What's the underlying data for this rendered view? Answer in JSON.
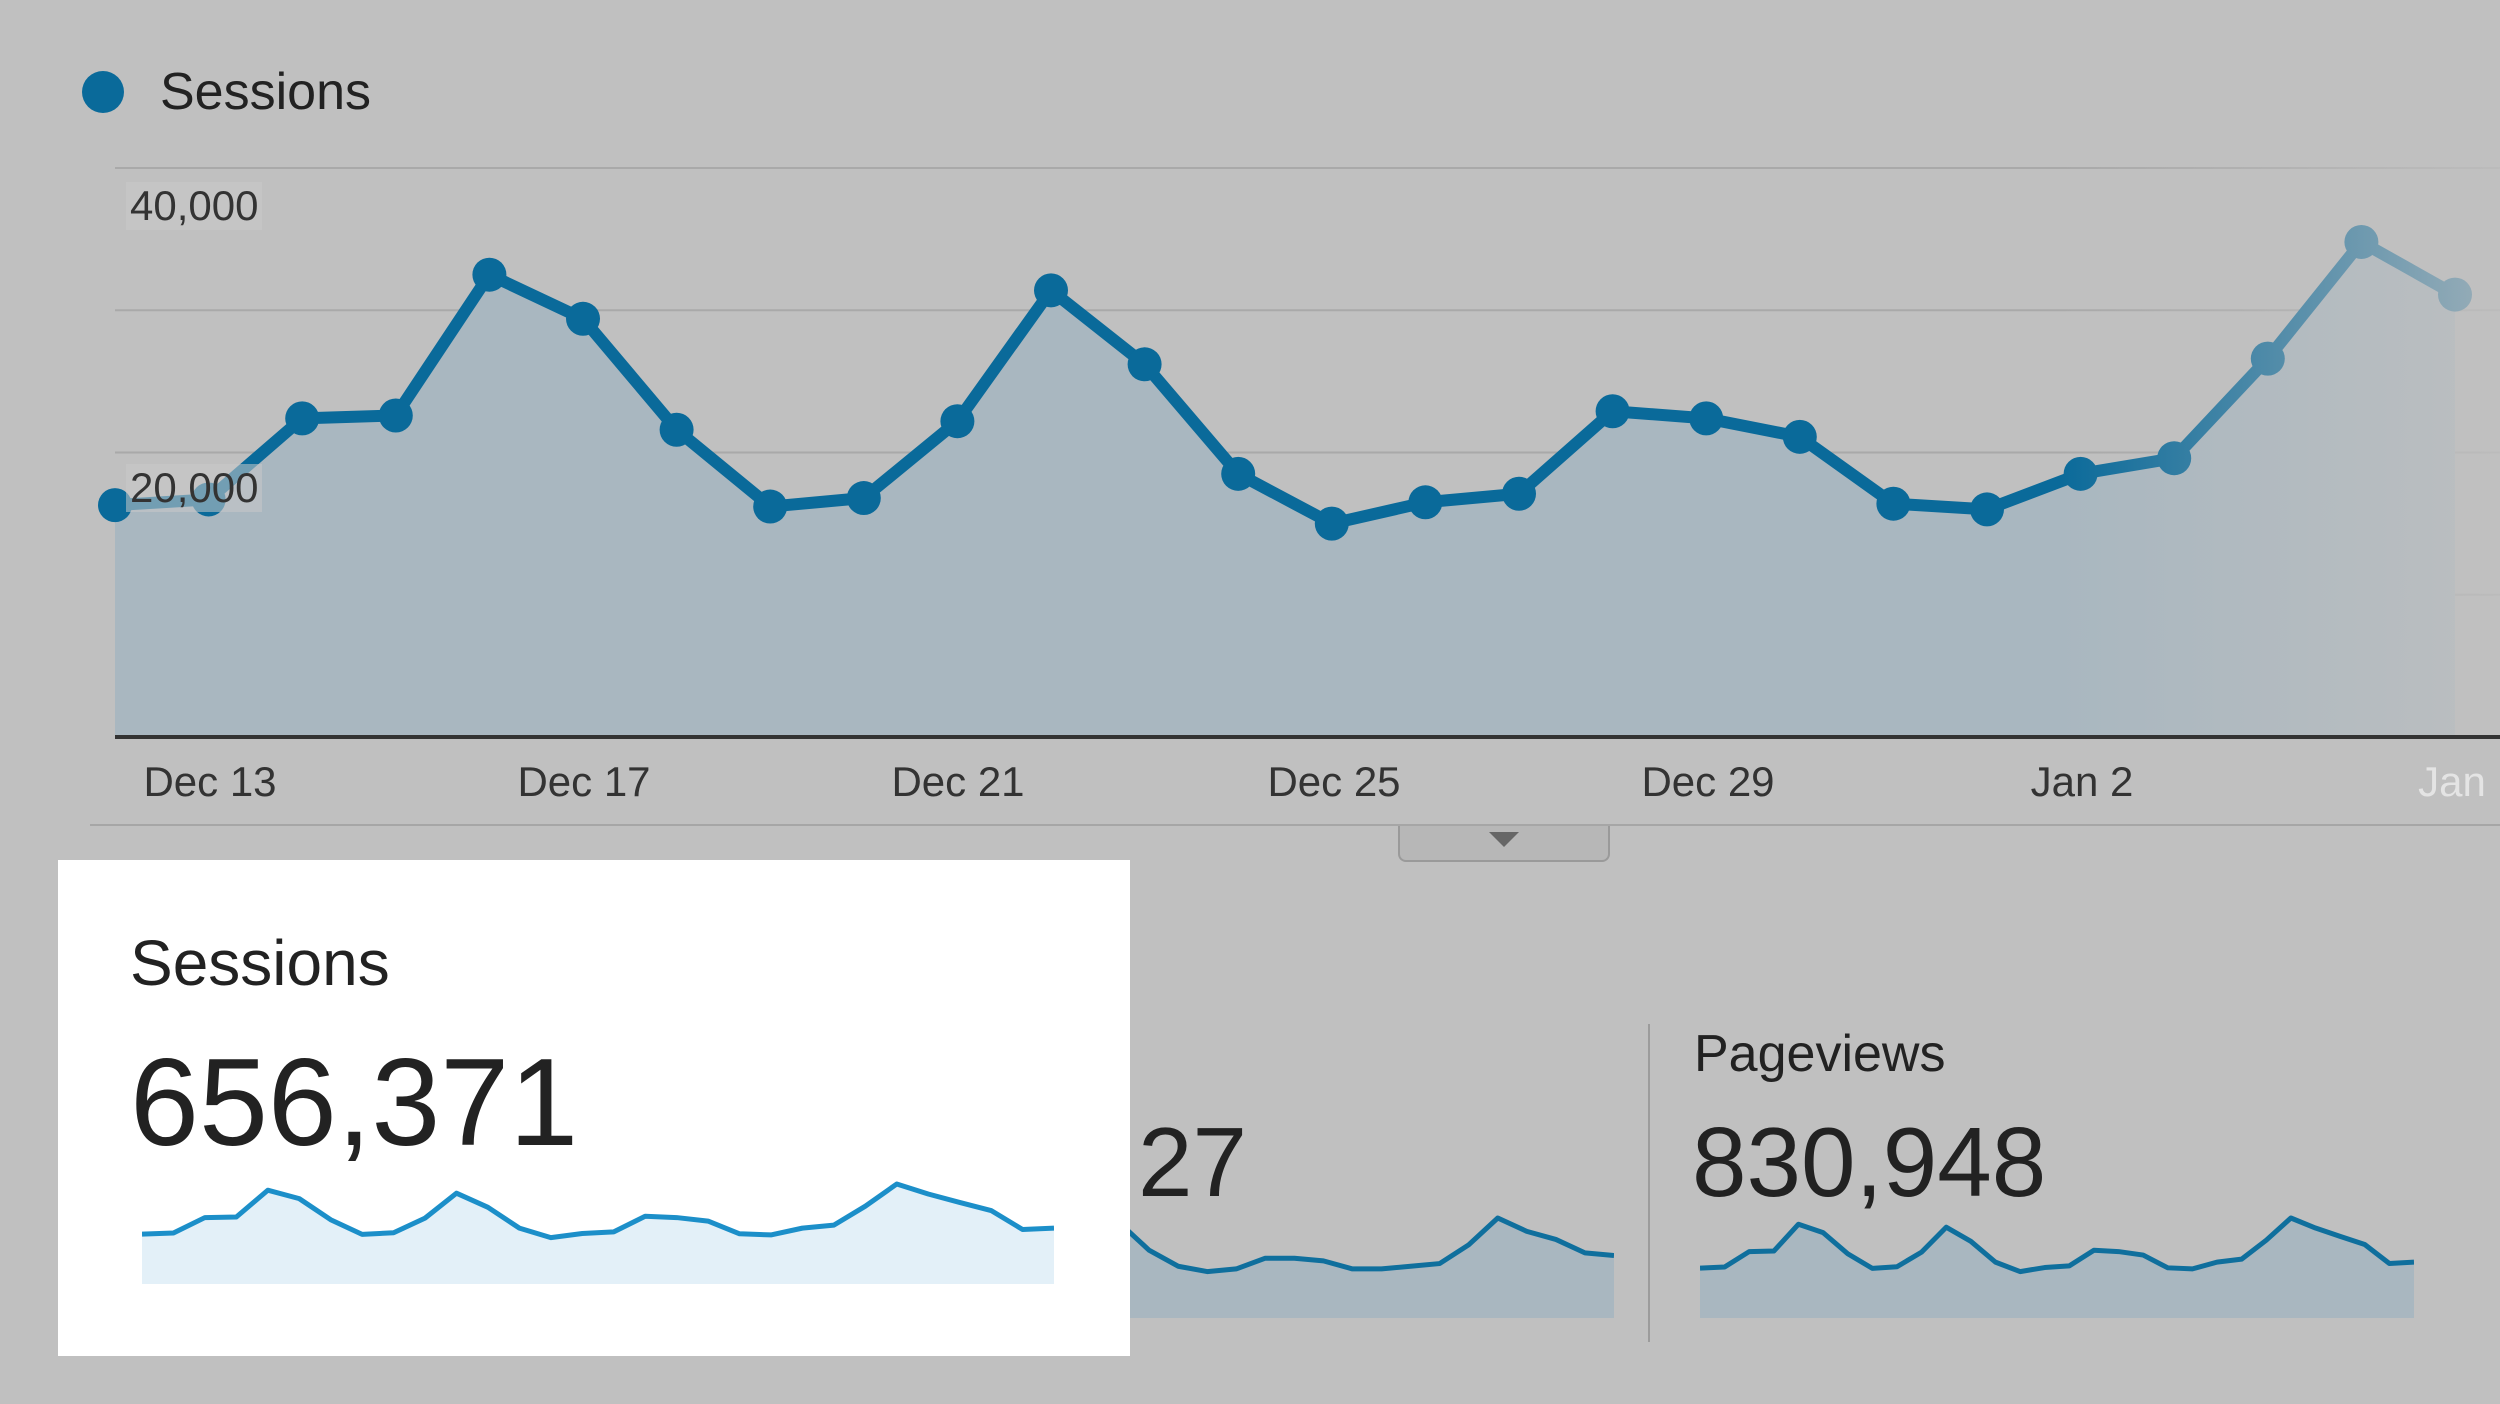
{
  "legend": {
    "label": "Sessions"
  },
  "chart_data": {
    "type": "area",
    "title": "",
    "series": [
      {
        "name": "Sessions",
        "values": [
          16300,
          16700,
          22400,
          22600,
          32500,
          29400,
          21600,
          16200,
          16800,
          22200,
          31400,
          26200,
          18500,
          15000,
          16500,
          17100,
          22900,
          22400,
          21100,
          16400,
          16000,
          18500,
          19600,
          26600,
          34800,
          31100
        ]
      }
    ],
    "x_ticks": [
      "Dec 13",
      "Dec 17",
      "Dec 21",
      "Dec 25",
      "Dec 29",
      "Jan 2",
      "Jan"
    ],
    "y_ticks": [
      "40,000",
      "20,000"
    ],
    "ylim": [
      0,
      40000
    ],
    "grid": true,
    "color": "#0a6a9a"
  },
  "metrics": [
    {
      "title": "Sessions",
      "value": "656,371",
      "highlighted": true,
      "spark": [
        16300,
        16700,
        22400,
        22600,
        32500,
        29400,
        21600,
        16200,
        16800,
        22200,
        31400,
        26200,
        18500,
        15000,
        16500,
        17100,
        22900,
        22400,
        21100,
        16400,
        16000,
        18500,
        19600,
        26600,
        34800,
        31100,
        28000,
        25000,
        18000,
        18500
      ]
    },
    {
      "title": "",
      "value": "27",
      "highlighted": false,
      "spark": [
        28,
        18,
        12,
        10,
        11,
        15,
        15,
        14,
        11,
        11,
        12,
        13,
        20,
        30,
        25,
        22,
        17,
        16
      ]
    },
    {
      "title": "Pageviews",
      "value": "830,948",
      "highlighted": false,
      "spark": [
        16300,
        16700,
        22400,
        22600,
        32500,
        29400,
        21600,
        16200,
        16800,
        22200,
        31400,
        26200,
        18500,
        15000,
        16500,
        17100,
        22900,
        22400,
        21100,
        16400,
        16000,
        18500,
        19600,
        26600,
        34800,
        31100,
        28000,
        25000,
        18000,
        18500
      ]
    }
  ],
  "colors": {
    "line": "#0a6a9a",
    "spark_line": "#1c8fc9",
    "spark_fill_highlight": "#e3f0f8",
    "background": "#c0c0c0"
  }
}
